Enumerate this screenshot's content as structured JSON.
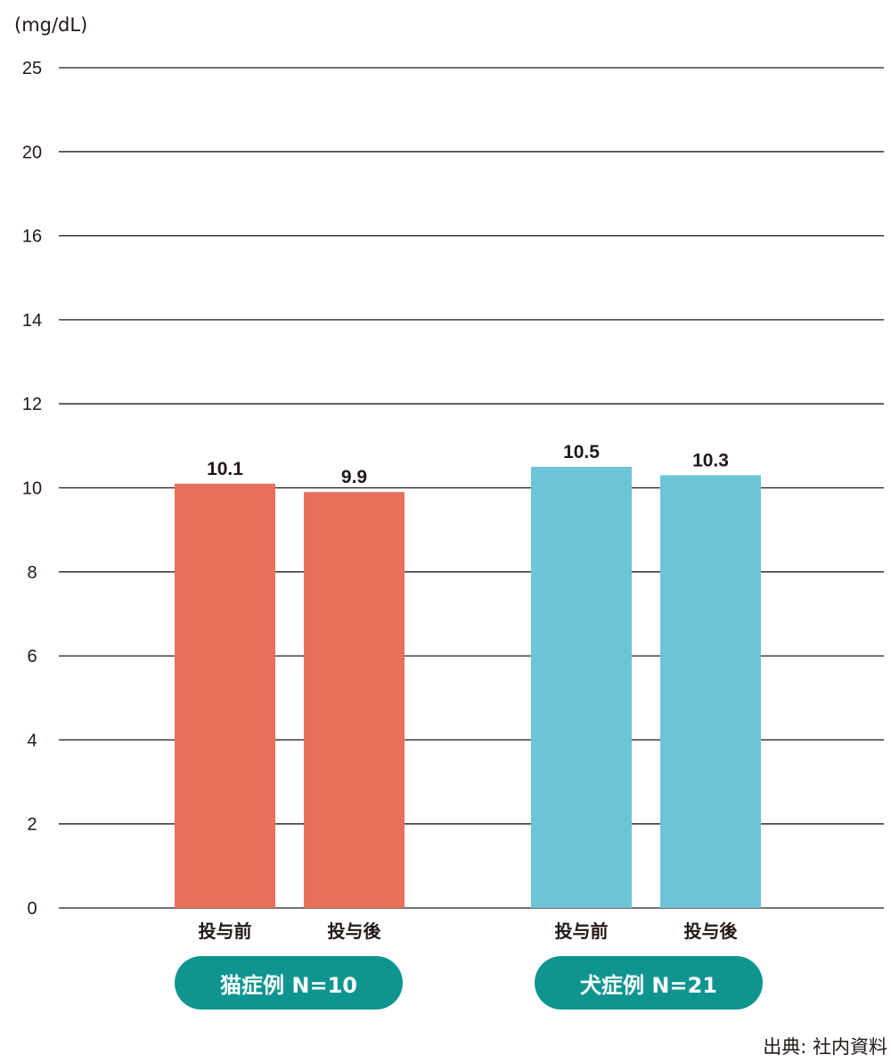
{
  "chart_data": {
    "type": "bar",
    "unit_label": "(mg/dL)",
    "y_ticks": [
      "0",
      "2",
      "4",
      "6",
      "8",
      "10",
      "12",
      "14",
      "16",
      "20",
      "25"
    ],
    "groups": [
      {
        "label": "猫症例 N=10",
        "color": "#e7705b",
        "bars": [
          {
            "category": "投与前",
            "value": 10.1,
            "label": "10.1"
          },
          {
            "category": "投与後",
            "value": 9.9,
            "label": "9.9"
          }
        ]
      },
      {
        "label": "犬症例 N=21",
        "color": "#6cc4d7",
        "bars": [
          {
            "category": "投与前",
            "value": 10.5,
            "label": "10.5"
          },
          {
            "category": "投与後",
            "value": 10.3,
            "label": "10.3"
          }
        ]
      }
    ],
    "grid": true,
    "legend": "none"
  },
  "source": "出典: 社内資料",
  "colors": {
    "group_pill": "#0f9590",
    "text": "#231815",
    "grid": "#231815"
  }
}
